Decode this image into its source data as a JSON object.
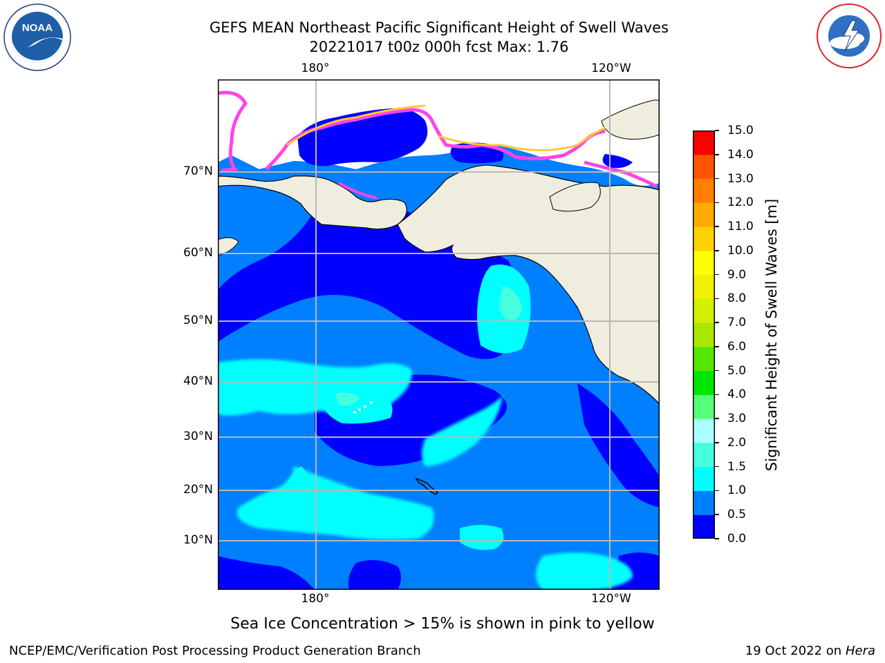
{
  "title": {
    "line1": "GEFS MEAN Northeast Pacific Significant Height of Swell Waves",
    "line2": "20221017 t00z 000h fcst   Max: 1.76"
  },
  "map": {
    "lon_ticks": [
      "180°",
      "120°W"
    ],
    "lat_ticks": [
      "70°N",
      "60°N",
      "50°N",
      "40°N",
      "30°N",
      "20°N",
      "10°N"
    ],
    "colors": {
      "land": "#efedde",
      "ice_pink": "#ff44e6",
      "ice_orange": "#ffc832",
      "white": "#ffffff",
      "grid": "#b8b8b8"
    }
  },
  "colorbar": {
    "label": "Significant Height of Swell Waves [m]",
    "levels": [
      "0.0",
      "0.5",
      "1.0",
      "1.5",
      "2.0",
      "3.0",
      "4.0",
      "5.0",
      "6.0",
      "7.0",
      "8.0",
      "9.0",
      "10.0",
      "11.0",
      "12.0",
      "13.0",
      "14.0",
      "15.0"
    ],
    "colors": [
      "#0000ff",
      "#0080ff",
      "#00ffff",
      "#46ffdc",
      "#aaffff",
      "#55ff78",
      "#00e600",
      "#55e600",
      "#aae600",
      "#d2f000",
      "#f0f000",
      "#ffff00",
      "#ffd200",
      "#ffaa00",
      "#ff8000",
      "#ff5500",
      "#ff0000"
    ]
  },
  "field": {
    "max_value": 1.76
  },
  "caption": "Sea Ice Concentration > 15% is shown in pink to yellow",
  "footer": {
    "left": "NCEP/EMC/Verification Post Processing Product Generation Branch",
    "date": "19 Oct 2022 on",
    "machine": "Hera"
  },
  "logos": {
    "left": {
      "text": "NOAA",
      "ring_text": "NATIONAL OCEANIC AND ATMOSPHERIC ADMINISTRATION · U.S. DEPARTMENT OF COMMERCE",
      "colors": {
        "blue": "#1f5fa8",
        "navy": "#1c3f7a"
      },
      "icon": "noaa-logo-icon"
    },
    "right": {
      "ring_text": "NATIONAL WEATHER SERVICE",
      "colors": {
        "red": "#e0202a",
        "blue": "#2f6fc4"
      },
      "icon": "nws-logo-icon"
    }
  }
}
